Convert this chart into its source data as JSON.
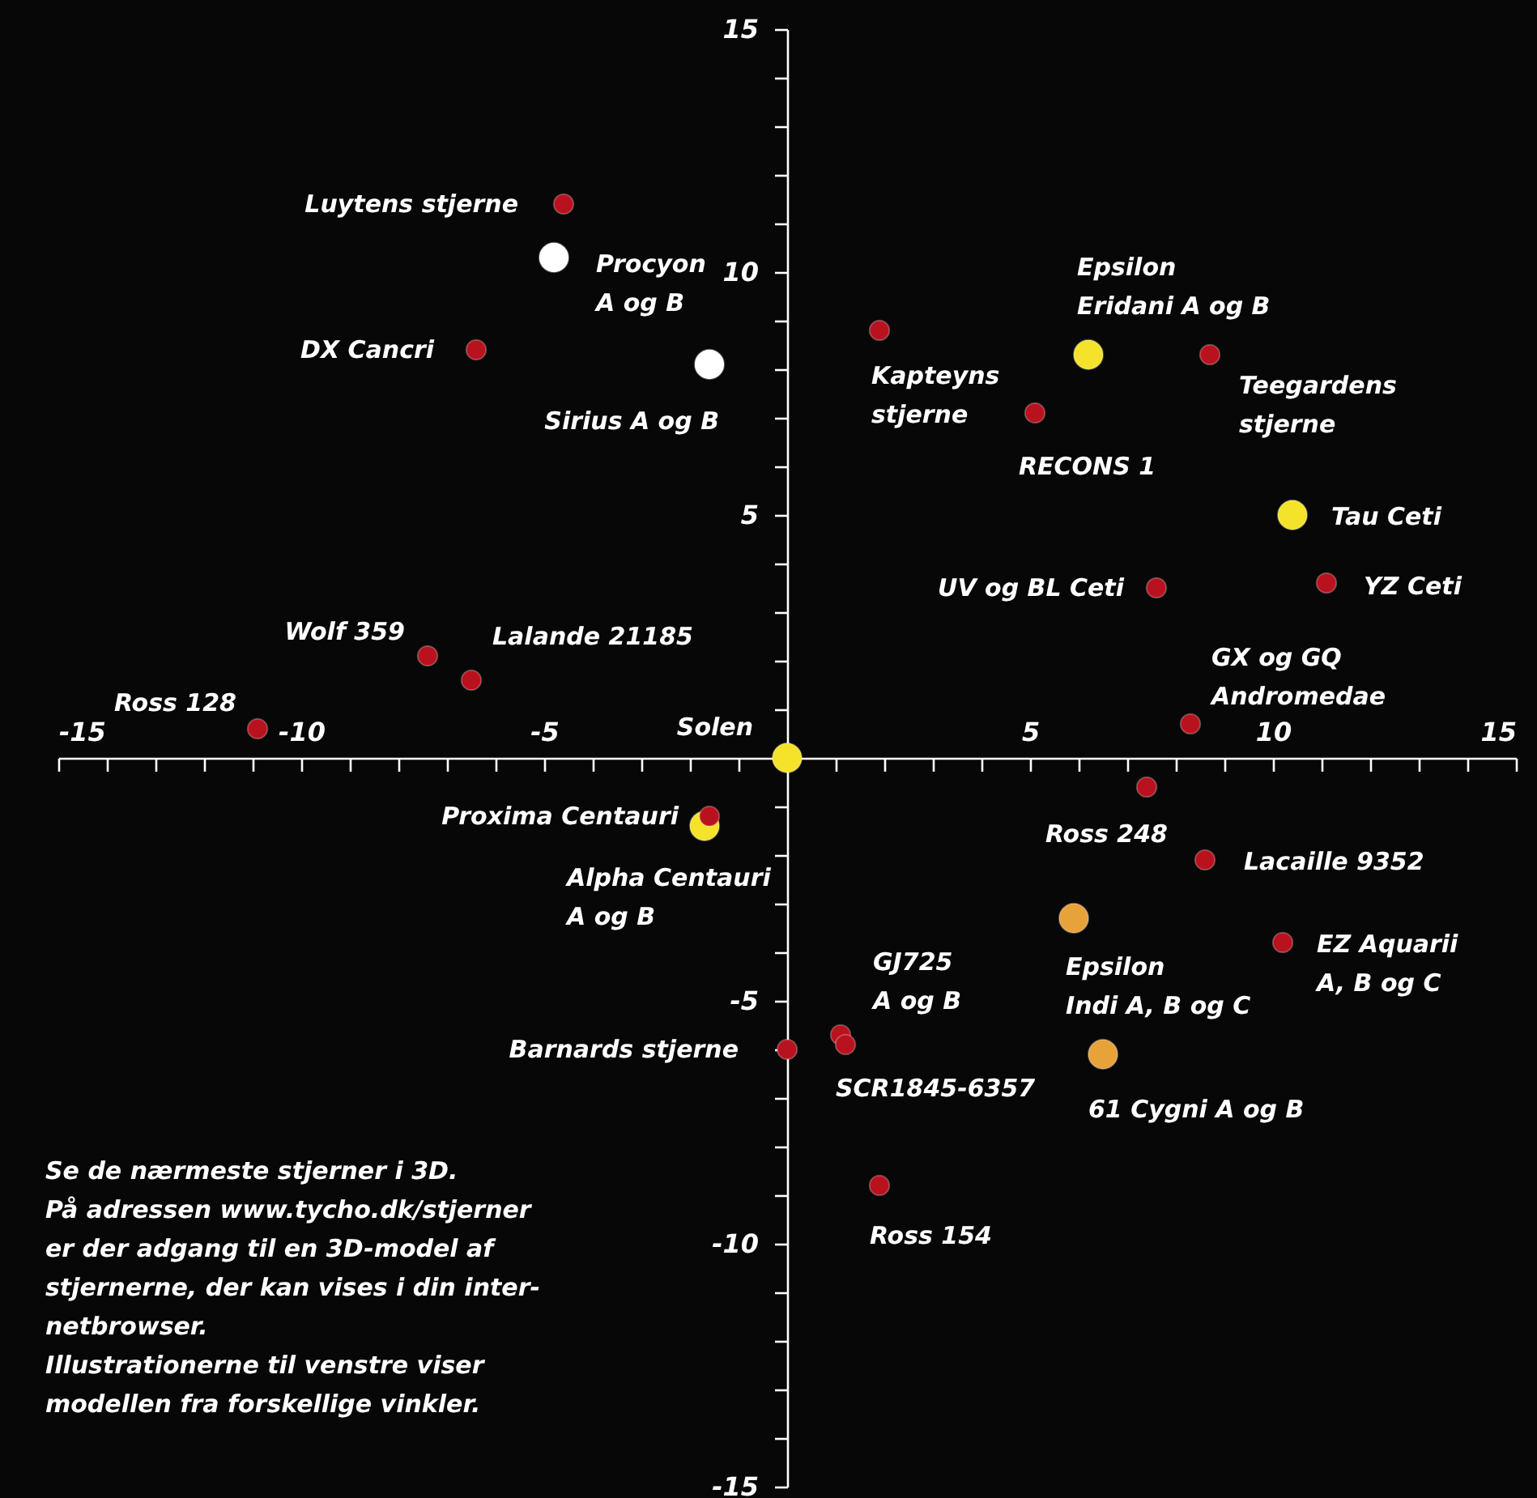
{
  "chart_data": {
    "type": "scatter",
    "marker": "circle",
    "xlim": [
      -15,
      15
    ],
    "ylim": [
      -15,
      15
    ],
    "xticks": [
      "-15",
      {
        "value": -14,
        "label": null
      },
      {
        "value": -13,
        "label": null
      },
      {
        "value": -12,
        "label": null
      },
      {
        "value": -11,
        "label": null
      },
      -10,
      {
        "value": -9,
        "label": null
      },
      {
        "value": -8,
        "label": null
      },
      {
        "value": -7,
        "label": null
      },
      {
        "value": -6,
        "label": null
      },
      -5,
      {
        "value": -4,
        "label": null
      },
      {
        "value": -3,
        "label": null
      },
      {
        "value": -2,
        "label": null
      },
      {
        "value": -1,
        "label": null
      },
      {
        "value": 0,
        "label": null
      },
      {
        "value": 1,
        "label": null
      },
      {
        "value": 2,
        "label": null
      },
      {
        "value": 3,
        "label": null
      },
      {
        "value": 4,
        "label": null
      },
      5,
      {
        "value": 6,
        "label": null
      },
      {
        "value": 7,
        "label": null
      },
      {
        "value": 8,
        "label": null
      },
      {
        "value": 9,
        "label": null
      },
      10,
      {
        "value": 11,
        "label": null
      },
      {
        "value": 12,
        "label": null
      },
      {
        "value": 13,
        "label": null
      },
      {
        "value": 14,
        "label": null
      },
      15
    ],
    "yticks": [
      -15,
      {
        "value": -14,
        "label": null
      },
      {
        "value": -13,
        "label": null
      },
      {
        "value": -12,
        "label": null
      },
      {
        "value": -11,
        "label": null
      },
      -10,
      {
        "value": -9,
        "label": null
      },
      {
        "value": -8,
        "label": null
      },
      {
        "value": -7,
        "label": null
      },
      {
        "value": -6,
        "label": null
      },
      -5,
      {
        "value": -4,
        "label": null
      },
      {
        "value": -3,
        "label": null
      },
      {
        "value": -2,
        "label": null
      },
      {
        "value": -1,
        "label": null
      },
      {
        "value": 0,
        "label": null
      },
      {
        "value": 1,
        "label": null
      },
      {
        "value": 2,
        "label": null
      },
      {
        "value": 3,
        "label": null
      },
      {
        "value": 4,
        "label": null
      },
      5,
      {
        "value": 6,
        "label": null
      },
      {
        "value": 7,
        "label": null
      },
      {
        "value": 8,
        "label": null
      },
      {
        "value": 9,
        "label": null
      },
      10,
      {
        "value": 11,
        "label": null
      },
      {
        "value": 12,
        "label": null
      },
      {
        "value": 13,
        "label": null
      },
      {
        "value": 14,
        "label": null
      },
      15
    ],
    "series": [
      {
        "color": "#b8121e",
        "x": [
          -4.6,
          -6.4,
          1.9,
          8.7,
          5.1,
          7.6,
          11.1,
          -7.4,
          -6.5,
          -10.9,
          8.3,
          -1.6,
          7.4,
          8.6,
          10.2,
          1.1,
          1.2,
          0.0,
          1.9
        ],
        "values": [
          11.4,
          8.4,
          8.8,
          8.3,
          7.1,
          3.5,
          3.6,
          2.1,
          1.6,
          0.6,
          0.7,
          -1.2,
          -0.6,
          -2.1,
          -3.8,
          -5.7,
          -5.9,
          -6.0,
          -8.8
        ]
      },
      {
        "color": "#ffffff",
        "x": [
          -4.8,
          -1.6
        ],
        "values": [
          10.3,
          8.1
        ]
      },
      {
        "color": "#f5e22a",
        "x": [
          6.2,
          10.4,
          0.0,
          -1.7
        ],
        "values": [
          8.3,
          5.0,
          0.0,
          -1.4
        ]
      },
      {
        "color": "#e8a23a",
        "x": [
          5.9,
          6.5
        ],
        "values": [
          -3.3,
          -6.1
        ]
      }
    ],
    "annotations": [
      {
        "text": "Luytens stjerne",
        "x": -4.6,
        "y": 11.4
      },
      {
        "text": "Procyon\nA og B",
        "x": -4.8,
        "y": 10.3
      },
      {
        "text": "DX Cancri",
        "x": -6.4,
        "y": 8.4
      },
      {
        "text": "Sirius A og B",
        "x": -1.6,
        "y": 8.1
      },
      {
        "text": "Kapteyns\nstjerne",
        "x": 1.9,
        "y": 8.8
      },
      {
        "text": "Epsilon\nEridani A og B",
        "x": 6.2,
        "y": 8.3
      },
      {
        "text": "Teegardens\nstjerne",
        "x": 8.7,
        "y": 8.3
      },
      {
        "text": "RECONS 1",
        "x": 5.1,
        "y": 7.1
      },
      {
        "text": "Tau Ceti",
        "x": 10.4,
        "y": 5.0
      },
      {
        "text": "UV og BL Ceti",
        "x": 7.6,
        "y": 3.5
      },
      {
        "text": "YZ Ceti",
        "x": 11.1,
        "y": 3.6
      },
      {
        "text": "Wolf 359",
        "x": -7.4,
        "y": 2.1
      },
      {
        "text": "Lalande 21185",
        "x": -6.5,
        "y": 1.6
      },
      {
        "text": "Ross 128",
        "x": -10.9,
        "y": 0.6
      },
      {
        "text": "GX og GQ\nAndromedae",
        "x": 8.3,
        "y": 0.7
      },
      {
        "text": "Solen",
        "x": 0.0,
        "y": 0.0
      },
      {
        "text": "Proxima Centauri",
        "x": -1.6,
        "y": -1.2
      },
      {
        "text": "Alpha Centauri\nA og B",
        "x": -1.7,
        "y": -1.4
      },
      {
        "text": "Ross 248",
        "x": 7.4,
        "y": -0.6
      },
      {
        "text": "Lacaille 9352",
        "x": 8.6,
        "y": -2.1
      },
      {
        "text": "Epsilon\nIndi A, B og C",
        "x": 5.9,
        "y": -3.3
      },
      {
        "text": "EZ Aquarii\nA, B og C",
        "x": 10.2,
        "y": -3.8
      },
      {
        "text": "GJ725\nA og B",
        "x": 1.1,
        "y": -5.7
      },
      {
        "text": "SCR1845-6357",
        "x": 1.2,
        "y": -5.9
      },
      {
        "text": "Barnards stjerne",
        "x": 0.0,
        "y": -6.0
      },
      {
        "text": "61 Cygni A og B",
        "x": 6.5,
        "y": -6.1
      },
      {
        "text": "Ross 154",
        "x": 1.9,
        "y": -8.8
      },
      "Se de nærmeste stjerner i 3D.\nPå adressen www.tycho.dk/stjerner\ner der adgang til en 3D-model af\nstjernerne, der kan vises i din inter-\nnetbrowser.\nIllustrationerne til venstre viser\nmodellen fra forskellige vinkler."
    ]
  }
}
